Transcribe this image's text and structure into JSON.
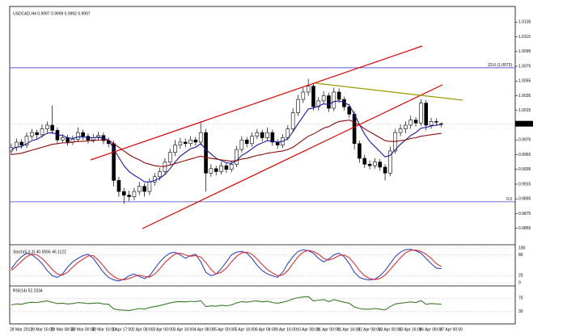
{
  "chart_data": {
    "type": "candlestick",
    "title": "USDCAD,H4 0.9997 0.9999 0.9992 0.9997",
    "categories": [
      "28 Mar 2012",
      null,
      null,
      null,
      "28 Mar 16:00",
      null,
      null,
      null,
      "29 Mar 08:00",
      null,
      null,
      null,
      "30 Mar 00:00",
      null,
      null,
      null,
      "30 Mar 16:00",
      null,
      null,
      null,
      "1 Apr 17:00",
      null,
      null,
      null,
      "2 Apr 08:00",
      null,
      null,
      null,
      "3 Apr 00:00",
      null,
      null,
      null,
      "3 Apr 16:00",
      null,
      null,
      null,
      "4 Apr 08:00",
      null,
      null,
      null,
      "5 Apr 00:00",
      null,
      null,
      null,
      "5 Apr 16:00",
      null,
      null,
      null,
      "6 Apr 08:00",
      null,
      null,
      null,
      "9 Apr 16:00",
      null,
      null,
      null,
      "10 Apr 08:00",
      null,
      null,
      null,
      "11 Apr 00:00",
      null,
      null,
      null,
      "11 Apr 16:00",
      null,
      null,
      null,
      "12 Apr 08:00",
      null,
      null,
      null,
      "13 Apr 00:00",
      null,
      null,
      null,
      "13 Apr 16:00",
      null,
      null,
      null,
      "16 Apr 08:00",
      null,
      null,
      null,
      "17 Apr 00:00"
    ],
    "ohlc": [
      [
        0.996,
        0.997,
        0.9955,
        0.9965
      ],
      [
        0.9965,
        0.9977,
        0.996,
        0.9972
      ],
      [
        0.9972,
        0.9976,
        0.9963,
        0.9968
      ],
      [
        0.9968,
        0.9985,
        0.9964,
        0.998
      ],
      [
        0.998,
        0.999,
        0.9976,
        0.9985
      ],
      [
        0.9985,
        0.9989,
        0.9977,
        0.9982
      ],
      [
        0.9982,
        0.9996,
        0.9978,
        0.999
      ],
      [
        0.999,
        1.0,
        0.9985,
        0.9995
      ],
      [
        0.9995,
        1.0022,
        0.9983,
        0.9988
      ],
      [
        0.9988,
        0.9992,
        0.997,
        0.9975
      ],
      [
        0.9975,
        0.9983,
        0.9971,
        0.9978
      ],
      [
        0.9978,
        0.9982,
        0.9967,
        0.9972
      ],
      [
        0.9972,
        0.9981,
        0.9968,
        0.9976
      ],
      [
        0.9976,
        0.9992,
        0.9972,
        0.9985
      ],
      [
        0.9985,
        0.9989,
        0.9975,
        0.998
      ],
      [
        0.998,
        0.9984,
        0.997,
        0.9975
      ],
      [
        0.9975,
        0.9983,
        0.9971,
        0.9978
      ],
      [
        0.9978,
        0.9986,
        0.9974,
        0.9981
      ],
      [
        0.9981,
        0.9985,
        0.9969,
        0.9974
      ],
      [
        0.9974,
        0.9978,
        0.9965,
        0.997
      ],
      [
        0.997,
        0.9974,
        0.9912,
        0.992
      ],
      [
        0.992,
        0.9925,
        0.9898,
        0.9905
      ],
      [
        0.9905,
        0.991,
        0.9888,
        0.99
      ],
      [
        0.99,
        0.9906,
        0.9892,
        0.9898
      ],
      [
        0.9898,
        0.991,
        0.9893,
        0.9905
      ],
      [
        0.9905,
        0.9918,
        0.99,
        0.9912
      ],
      [
        0.9912,
        0.9916,
        0.9898,
        0.9905
      ],
      [
        0.9905,
        0.9923,
        0.99,
        0.9918
      ],
      [
        0.9918,
        0.993,
        0.9913,
        0.9925
      ],
      [
        0.9925,
        0.9937,
        0.992,
        0.9932
      ],
      [
        0.9932,
        0.995,
        0.9928,
        0.9945
      ],
      [
        0.9945,
        0.9963,
        0.994,
        0.9958
      ],
      [
        0.9958,
        0.9975,
        0.9953,
        0.9968
      ],
      [
        0.9968,
        0.9978,
        0.9963,
        0.9972
      ],
      [
        0.9972,
        0.9977,
        0.9965,
        0.997
      ],
      [
        0.997,
        0.998,
        0.9966,
        0.9975
      ],
      [
        0.9975,
        0.9979,
        0.9967,
        0.9972
      ],
      [
        0.9972,
        1.0,
        0.9968,
        0.9985
      ],
      [
        0.9985,
        0.999,
        0.9905,
        0.993
      ],
      [
        0.993,
        0.9942,
        0.9925,
        0.9936
      ],
      [
        0.9936,
        0.994,
        0.9927,
        0.9932
      ],
      [
        0.9932,
        0.9945,
        0.9928,
        0.994
      ],
      [
        0.994,
        0.9944,
        0.993,
        0.9935
      ],
      [
        0.9935,
        0.9947,
        0.9931,
        0.9942
      ],
      [
        0.9942,
        0.9967,
        0.9938,
        0.9962
      ],
      [
        0.9962,
        0.998,
        0.9958,
        0.9975
      ],
      [
        0.9975,
        0.9979,
        0.9965,
        0.997
      ],
      [
        0.997,
        0.9985,
        0.9966,
        0.998
      ],
      [
        0.998,
        0.999,
        0.9976,
        0.9985
      ],
      [
        0.9985,
        0.9989,
        0.9973,
        0.9978
      ],
      [
        0.9978,
        0.9992,
        0.9974,
        0.9985
      ],
      [
        0.9985,
        0.9989,
        0.9967,
        0.9972
      ],
      [
        0.9972,
        0.9976,
        0.9963,
        0.9968
      ],
      [
        0.9968,
        0.9983,
        0.9964,
        0.9978
      ],
      [
        0.9978,
        0.9995,
        0.9974,
        0.999
      ],
      [
        0.999,
        1.0018,
        0.9986,
        1.0012
      ],
      [
        1.0012,
        1.0036,
        1.0008,
        1.003
      ],
      [
        1.003,
        1.0046,
        1.0025,
        1.004
      ],
      [
        1.004,
        1.0058,
        1.0035,
        1.0048
      ],
      [
        1.0048,
        1.0052,
        1.0015,
        1.002
      ],
      [
        1.002,
        1.0033,
        1.0015,
        1.0028
      ],
      [
        1.0028,
        1.0041,
        1.0024,
        1.0035
      ],
      [
        1.0035,
        1.0039,
        1.0013,
        1.0018
      ],
      [
        1.0018,
        1.0046,
        1.0014,
        1.004
      ],
      [
        1.004,
        1.0045,
        1.0025,
        1.003
      ],
      [
        1.003,
        1.0034,
        1.0015,
        1.002
      ],
      [
        1.002,
        1.0024,
        1.0005,
        1.001
      ],
      [
        1.001,
        1.0014,
        0.9962,
        0.997
      ],
      [
        0.997,
        0.9974,
        0.9944,
        0.995
      ],
      [
        0.995,
        0.9955,
        0.9937,
        0.9942
      ],
      [
        0.9942,
        0.9947,
        0.9935,
        0.994
      ],
      [
        0.994,
        0.995,
        0.9936,
        0.9945
      ],
      [
        0.9945,
        0.9949,
        0.9933,
        0.9938
      ],
      [
        0.9938,
        0.9942,
        0.992,
        0.993
      ],
      [
        0.993,
        0.9966,
        0.9926,
        0.996
      ],
      [
        0.996,
        0.999,
        0.9956,
        0.9985
      ],
      [
        0.9985,
        0.9996,
        0.998,
        0.999
      ],
      [
        0.999,
        1.0,
        0.9984,
        0.9995
      ],
      [
        0.9995,
        1.0008,
        0.999,
        1.0002
      ],
      [
        1.0002,
        1.0006,
        0.9993,
        0.9998
      ],
      [
        0.9998,
        1.003,
        0.9994,
        1.0025
      ],
      [
        1.0025,
        1.0029,
        0.9988,
        0.9995
      ],
      [
        0.9995,
        1.0005,
        0.999,
        1.0
      ],
      [
        1.0,
        1.0004,
        0.9994,
        0.9999
      ],
      [
        0.9997,
        0.9999,
        0.9992,
        0.9997
      ]
    ],
    "bull_color": "#ffffff",
    "bear_color": "#000000",
    "moving_averages": [
      {
        "color": "#1a1aa6",
        "values": [
          0.9962,
          0.9965,
          0.9966,
          0.997,
          0.9974,
          0.9976,
          0.998,
          0.9984,
          0.9985,
          0.9982,
          0.9981,
          0.9978,
          0.9977,
          0.9979,
          0.9979,
          0.9978,
          0.9978,
          0.9979,
          0.9977,
          0.9975,
          0.9963,
          0.9951,
          0.994,
          0.9932,
          0.9927,
          0.9923,
          0.9918,
          0.9918,
          0.992,
          0.9923,
          0.9928,
          0.9936,
          0.9945,
          0.9953,
          0.9958,
          0.9963,
          0.9965,
          0.997,
          0.9962,
          0.9956,
          0.995,
          0.9947,
          0.9944,
          0.9943,
          0.9947,
          0.9954,
          0.9958,
          0.9963,
          0.9968,
          0.9971,
          0.9974,
          0.9973,
          0.9972,
          0.9973,
          0.9977,
          0.9986,
          0.9997,
          1.0007,
          1.0017,
          1.0018,
          1.0021,
          1.0024,
          1.0023,
          1.0027,
          1.0028,
          1.0026,
          1.0022,
          1.001,
          0.9996,
          0.9983,
          0.9973,
          0.9966,
          0.9959,
          0.9952,
          0.9954,
          0.9962,
          0.9969,
          0.9975,
          0.9981,
          0.9985,
          0.9991,
          0.9992,
          0.9994,
          0.9995,
          0.9996
        ]
      },
      {
        "color": "#8b0a0a",
        "values": [
          0.9955,
          0.9956,
          0.9957,
          0.9959,
          0.9961,
          0.9963,
          0.9965,
          0.9967,
          0.9969,
          0.997,
          0.9971,
          0.9971,
          0.9972,
          0.9973,
          0.9973,
          0.9974,
          0.9974,
          0.9975,
          0.9975,
          0.9975,
          0.997,
          0.9965,
          0.996,
          0.9955,
          0.9951,
          0.9948,
          0.9944,
          0.9942,
          0.994,
          0.9939,
          0.9939,
          0.9941,
          0.9943,
          0.9945,
          0.9947,
          0.9949,
          0.9951,
          0.9953,
          0.9951,
          0.995,
          0.9949,
          0.9948,
          0.9947,
          0.9946,
          0.9947,
          0.9949,
          0.995,
          0.9952,
          0.9954,
          0.9955,
          0.9957,
          0.9958,
          0.9959,
          0.996,
          0.9962,
          0.9965,
          0.997,
          0.9975,
          0.998,
          0.9983,
          0.9987,
          0.9991,
          0.9993,
          0.9997,
          1.0,
          1.0001,
          1.0002,
          0.9999,
          0.9995,
          0.999,
          0.9986,
          0.9982,
          0.9978,
          0.9974,
          0.9973,
          0.9973,
          0.9974,
          0.9975,
          0.9977,
          0.9978,
          0.998,
          0.9981,
          0.9982,
          0.9983,
          0.9984
        ]
      }
    ],
    "ylim": [
      0.9836,
      1.0154
    ],
    "yticks": [
      1.0135,
      1.0115,
      1.0095,
      1.0075,
      1.0055,
      1.0035,
      1.0015,
      0.9975,
      0.9955,
      0.9935,
      0.9915,
      0.9895,
      0.9875,
      0.9855
    ],
    "price_label": 0.9997,
    "fib_levels": [
      {
        "label": "23.6 (1.0073)",
        "value": 1.0073,
        "color": "#5a5ad8"
      },
      {
        "label": "0.0",
        "value": 0.9891,
        "color": "#5a5ad8"
      }
    ],
    "indicators": [
      {
        "type": "line",
        "title": "Stoch(5,3,3) 40.5556 46.1122",
        "ylim": [
          0,
          100
        ],
        "yticks": [
          100,
          80,
          20,
          0
        ],
        "series": [
          {
            "color": "#3048c0",
            "values": [
              40,
              60,
              75,
              85,
              80,
              70,
              55,
              35,
              20,
              15,
              25,
              45,
              60,
              70,
              78,
              82,
              70,
              50,
              30,
              15,
              8,
              5,
              10,
              20,
              25,
              18,
              12,
              20,
              40,
              60,
              75,
              85,
              88,
              80,
              70,
              78,
              82,
              60,
              30,
              20,
              25,
              40,
              60,
              80,
              88,
              90,
              85,
              70,
              50,
              35,
              25,
              20,
              15,
              30,
              55,
              75,
              90,
              95,
              92,
              85,
              70,
              60,
              68,
              80,
              85,
              75,
              55,
              30,
              15,
              10,
              8,
              10,
              20,
              35,
              55,
              75,
              88,
              95,
              96,
              92,
              85,
              70,
              55,
              42,
              40.5556
            ]
          },
          {
            "color": "#e03030",
            "values": [
              35,
              48,
              62,
              75,
              82,
              80,
              70,
              55,
              38,
              25,
              22,
              30,
              45,
              58,
              68,
              77,
              78,
              65,
              48,
              30,
              18,
              10,
              8,
              12,
              18,
              22,
              18,
              16,
              25,
              40,
              58,
              72,
              83,
              85,
              80,
              76,
              78,
              74,
              58,
              38,
              25,
              30,
              42,
              60,
              76,
              86,
              88,
              82,
              68,
              52,
              38,
              28,
              20,
              22,
              35,
              55,
              75,
              88,
              93,
              90,
              82,
              70,
              65,
              70,
              78,
              80,
              72,
              55,
              35,
              20,
              12,
              9,
              12,
              22,
              38,
              55,
              72,
              86,
              93,
              94,
              90,
              82,
              70,
              55,
              46.1122
            ]
          }
        ]
      },
      {
        "type": "line",
        "title": "RSI(14) 52.2334",
        "ylim": [
          0,
          100
        ],
        "yticks": [
          70,
          30
        ],
        "series": [
          {
            "color": "#3a7a2a",
            "values": [
              50,
              53,
              52,
              56,
              58,
              57,
              60,
              62,
              58,
              54,
              55,
              53,
              54,
              57,
              56,
              54,
              55,
              56,
              53,
              52,
              38,
              35,
              34,
              33,
              36,
              39,
              37,
              42,
              45,
              48,
              52,
              56,
              59,
              60,
              59,
              61,
              60,
              63,
              45,
              47,
              46,
              49,
              47,
              50,
              56,
              60,
              58,
              61,
              62,
              59,
              61,
              57,
              55,
              58,
              62,
              68,
              72,
              74,
              75,
              62,
              64,
              66,
              60,
              66,
              62,
              58,
              55,
              44,
              39,
              37,
              37,
              39,
              37,
              35,
              45,
              53,
              55,
              57,
              59,
              57,
              63,
              52,
              54,
              53,
              52.2334
            ]
          }
        ]
      }
    ]
  }
}
